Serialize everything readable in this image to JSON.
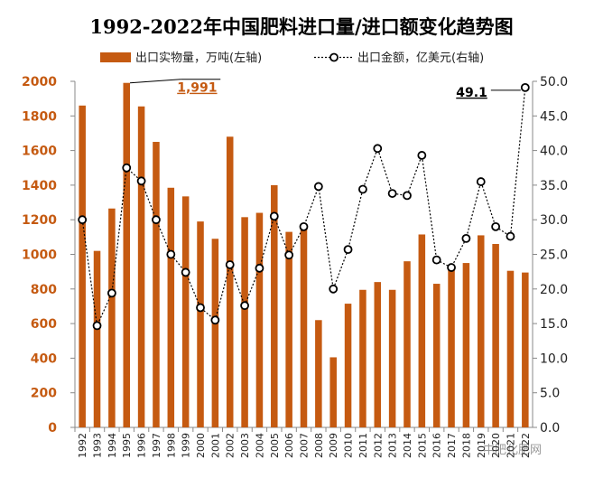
{
  "chart_data": {
    "type": "bar",
    "title": "1992-2022年中国肥料进口量/进口额变化趋势图",
    "categories": [
      "1992",
      "1993",
      "1994",
      "1995",
      "1996",
      "1997",
      "1998",
      "1999",
      "2000",
      "2001",
      "2002",
      "2003",
      "2004",
      "2005",
      "2006",
      "2007",
      "2008",
      "2009",
      "2010",
      "2011",
      "2012",
      "2013",
      "2014",
      "2015",
      "2016",
      "2017",
      "2018",
      "2019",
      "2020",
      "2021",
      "2022"
    ],
    "series": [
      {
        "name": "出口实物量，万吨(左轴)",
        "type": "bar",
        "axis": "left",
        "color": "#C55A11",
        "values": [
          1860,
          1020,
          1265,
          1991,
          1855,
          1650,
          1385,
          1335,
          1190,
          1090,
          1680,
          1215,
          1240,
          1400,
          1130,
          1160,
          620,
          405,
          715,
          795,
          840,
          795,
          960,
          1115,
          830,
          935,
          950,
          1110,
          1060,
          905,
          895
        ]
      },
      {
        "name": "出口金额，亿美元(右轴)",
        "type": "line",
        "axis": "right",
        "color": "#000000",
        "values": [
          30.0,
          14.7,
          19.4,
          37.5,
          35.6,
          30.0,
          25.0,
          22.4,
          17.3,
          15.5,
          23.5,
          17.6,
          23.0,
          30.5,
          24.9,
          29.0,
          34.8,
          20.0,
          25.7,
          34.4,
          40.3,
          33.8,
          33.5,
          39.3,
          24.2,
          23.1,
          27.3,
          35.5,
          29.0,
          27.6,
          49.1
        ]
      }
    ],
    "left_axis": {
      "ylim": [
        0,
        2000
      ],
      "ticks": [
        "0",
        "200",
        "400",
        "600",
        "800",
        "1000",
        "1200",
        "1400",
        "1600",
        "1800",
        "2000"
      ],
      "color": "#C55A11"
    },
    "right_axis": {
      "ylim": [
        0,
        50
      ],
      "ticks": [
        "0.0",
        "5.0",
        "10.0",
        "15.0",
        "20.0",
        "25.0",
        "30.0",
        "35.0",
        "40.0",
        "45.0",
        "50.0"
      ]
    },
    "annotations": [
      {
        "text": "1,991",
        "series": 0,
        "category": "1995",
        "color": "#C55A11"
      },
      {
        "text": "49.1",
        "series": 1,
        "category": "2022",
        "color": "#000000"
      }
    ],
    "legend_position": "top",
    "grid": false
  },
  "watermark": "中肥化肥网"
}
